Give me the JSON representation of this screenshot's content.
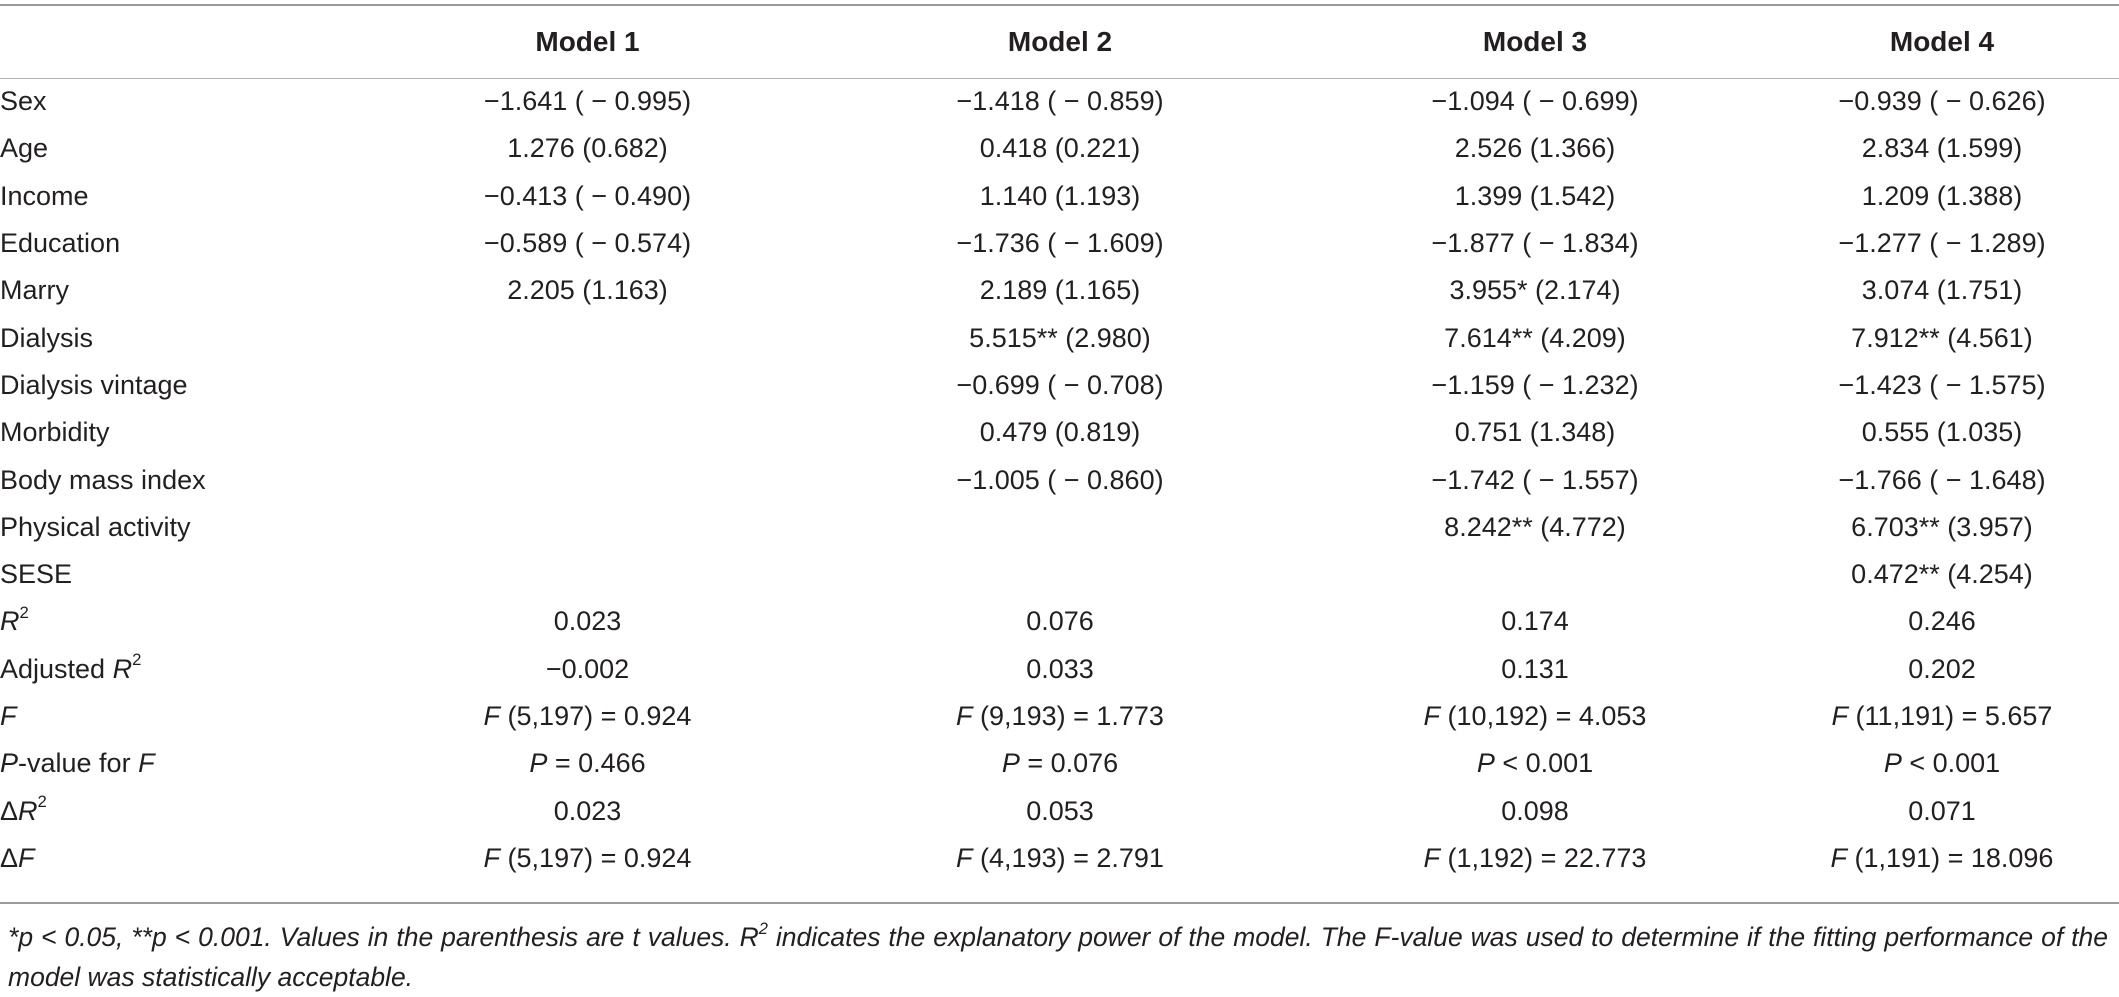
{
  "table": {
    "headers": [
      "",
      "Model 1",
      "Model 2",
      "Model 3",
      "Model 4"
    ],
    "rows": [
      {
        "label": "Sex",
        "values": [
          "−1.641 ( − 0.995)",
          "−1.418 ( − 0.859)",
          "−1.094 ( − 0.699)",
          "−0.939 ( − 0.626)"
        ]
      },
      {
        "label": "Age",
        "values": [
          "1.276 (0.682)",
          "0.418 (0.221)",
          "2.526 (1.366)",
          "2.834 (1.599)"
        ]
      },
      {
        "label": "Income",
        "values": [
          "−0.413 ( − 0.490)",
          "1.140 (1.193)",
          "1.399 (1.542)",
          "1.209 (1.388)"
        ]
      },
      {
        "label": "Education",
        "values": [
          "−0.589 ( − 0.574)",
          "−1.736 ( − 1.609)",
          "−1.877 ( − 1.834)",
          "−1.277 ( − 1.289)"
        ]
      },
      {
        "label": "Marry",
        "values": [
          "2.205 (1.163)",
          "2.189 (1.165)",
          "3.955* (2.174)",
          "3.074 (1.751)"
        ]
      },
      {
        "label": "Dialysis",
        "values": [
          "",
          "5.515** (2.980)",
          "7.614** (4.209)",
          "7.912** (4.561)"
        ]
      },
      {
        "label": "Dialysis vintage",
        "values": [
          "",
          "−0.699 ( − 0.708)",
          "−1.159 ( − 1.232)",
          "−1.423 ( − 1.575)"
        ]
      },
      {
        "label": "Morbidity",
        "values": [
          "",
          "0.479 (0.819)",
          "0.751 (1.348)",
          "0.555 (1.035)"
        ]
      },
      {
        "label": "Body mass index",
        "values": [
          "",
          "−1.005 ( − 0.860)",
          "−1.742 ( − 1.557)",
          "−1.766 ( − 1.648)"
        ]
      },
      {
        "label": "Physical activity",
        "values": [
          "",
          "",
          "8.242** (4.772)",
          "6.703** (3.957)"
        ]
      },
      {
        "label": "SESE",
        "values": [
          "",
          "",
          "",
          "0.472** (4.254)"
        ]
      }
    ],
    "r2": {
      "label_main": "R",
      "label_sup": "2",
      "values": [
        "0.023",
        "0.076",
        "0.174",
        "0.246"
      ]
    },
    "adj_r2": {
      "label_prefix": "Adjusted ",
      "label_main": "R",
      "label_sup": "2",
      "values": [
        "−0.002",
        "0.033",
        "0.131",
        "0.202"
      ]
    },
    "f": {
      "label": "F",
      "values": [
        {
          "f": "F",
          "rest": " (5,197) = 0.924"
        },
        {
          "f": "F",
          "rest": " (9,193) = 1.773"
        },
        {
          "f": "F",
          "rest": " (10,192) = 4.053"
        },
        {
          "f": "F",
          "rest": " (11,191) = 5.657"
        }
      ]
    },
    "p": {
      "label_p": "P",
      "label_mid": "-value for ",
      "label_f": "F",
      "values": [
        {
          "p": "P",
          "rest": " =  0.466"
        },
        {
          "p": "P",
          "rest": " =  0.076"
        },
        {
          "p": "P",
          "rest": " < 0.001"
        },
        {
          "p": "P",
          "rest": " < 0.001"
        }
      ]
    },
    "delta_r2": {
      "label_delta": "Δ",
      "label_main": "R",
      "label_sup": "2",
      "values": [
        "0.023",
        "0.053",
        "0.098",
        "0.071"
      ]
    },
    "delta_f": {
      "label_delta": "Δ",
      "label_main": "F",
      "values": [
        {
          "f": "F",
          "rest": " (5,197) = 0.924"
        },
        {
          "f": "F",
          "rest": " (4,193) = 2.791"
        },
        {
          "f": "F",
          "rest": " (1,192) = 22.773"
        },
        {
          "f": "F",
          "rest": " (1,191) = 18.096"
        }
      ]
    }
  },
  "footnote": {
    "part1": "*p < 0.05, **p < 0.001. Values in the parenthesis are t values. ",
    "r": "R",
    "sup": "2",
    "part2": " indicates the explanatory power of the model. The F-value was used to determine if the fitting performance of the model was statistically acceptable."
  }
}
